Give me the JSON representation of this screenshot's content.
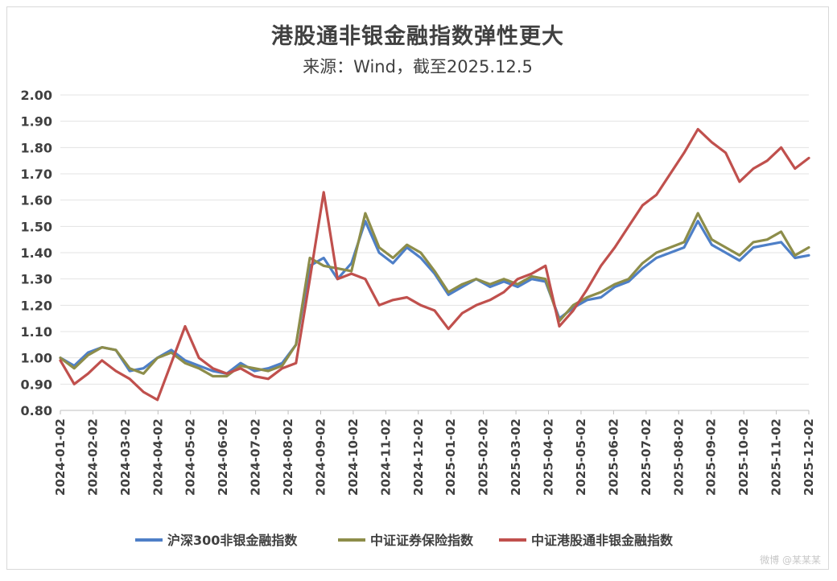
{
  "chart_data": {
    "type": "line",
    "title": "港股通非银金融指数弹性更大",
    "subtitle": "来源：Wind，截至2025.12.5",
    "ylim": [
      0.8,
      2.0
    ],
    "yticks": [
      "2.00",
      "1.90",
      "1.80",
      "1.70",
      "1.60",
      "1.50",
      "1.40",
      "1.30",
      "1.20",
      "1.10",
      "1.00",
      "0.90",
      "0.80"
    ],
    "xticks": [
      "2024-01-02",
      "2024-02-02",
      "2024-03-02",
      "2024-04-02",
      "2024-05-02",
      "2024-06-02",
      "2024-07-02",
      "2024-08-02",
      "2024-09-02",
      "2024-10-02",
      "2024-11-02",
      "2024-12-02",
      "2025-01-02",
      "2025-02-02",
      "2025-03-02",
      "2025-04-02",
      "2025-05-02",
      "2025-06-02",
      "2025-07-02",
      "2025-08-02",
      "2025-09-02",
      "2025-10-02",
      "2025-11-02",
      "2025-12-02"
    ],
    "grid": true,
    "legend_position": "bottom",
    "series": [
      {
        "name": "沪深300非银金融指数",
        "color": "#4e7fc7",
        "values": [
          1.0,
          0.97,
          1.02,
          1.04,
          1.03,
          0.95,
          0.96,
          1.0,
          1.03,
          0.99,
          0.97,
          0.95,
          0.94,
          0.98,
          0.95,
          0.96,
          0.98,
          1.05,
          1.35,
          1.38,
          1.3,
          1.36,
          1.52,
          1.4,
          1.36,
          1.42,
          1.38,
          1.32,
          1.24,
          1.27,
          1.3,
          1.27,
          1.29,
          1.27,
          1.3,
          1.29,
          1.15,
          1.19,
          1.22,
          1.23,
          1.27,
          1.29,
          1.34,
          1.38,
          1.4,
          1.42,
          1.52,
          1.43,
          1.4,
          1.37,
          1.42,
          1.43,
          1.44,
          1.38,
          1.39
        ]
      },
      {
        "name": "中证证券保险指数",
        "color": "#8d8d4a",
        "values": [
          1.0,
          0.96,
          1.01,
          1.04,
          1.03,
          0.96,
          0.94,
          1.0,
          1.02,
          0.98,
          0.96,
          0.93,
          0.93,
          0.97,
          0.96,
          0.95,
          0.97,
          1.05,
          1.38,
          1.35,
          1.34,
          1.33,
          1.55,
          1.42,
          1.38,
          1.43,
          1.4,
          1.33,
          1.25,
          1.28,
          1.3,
          1.28,
          1.3,
          1.28,
          1.31,
          1.3,
          1.14,
          1.2,
          1.23,
          1.25,
          1.28,
          1.3,
          1.36,
          1.4,
          1.42,
          1.44,
          1.55,
          1.45,
          1.42,
          1.39,
          1.44,
          1.45,
          1.48,
          1.39,
          1.42
        ]
      },
      {
        "name": "中证港股通非银金融指数",
        "color": "#c0504d",
        "values": [
          0.99,
          0.9,
          0.94,
          0.99,
          0.95,
          0.92,
          0.87,
          0.84,
          0.98,
          1.12,
          1.0,
          0.96,
          0.94,
          0.96,
          0.93,
          0.92,
          0.96,
          0.98,
          1.3,
          1.63,
          1.3,
          1.32,
          1.3,
          1.2,
          1.22,
          1.23,
          1.2,
          1.18,
          1.11,
          1.17,
          1.2,
          1.22,
          1.25,
          1.3,
          1.32,
          1.35,
          1.12,
          1.18,
          1.26,
          1.35,
          1.42,
          1.5,
          1.58,
          1.62,
          1.7,
          1.78,
          1.87,
          1.82,
          1.78,
          1.67,
          1.72,
          1.75,
          1.8,
          1.72,
          1.76
        ]
      }
    ]
  },
  "watermark": "微博 @某某某"
}
